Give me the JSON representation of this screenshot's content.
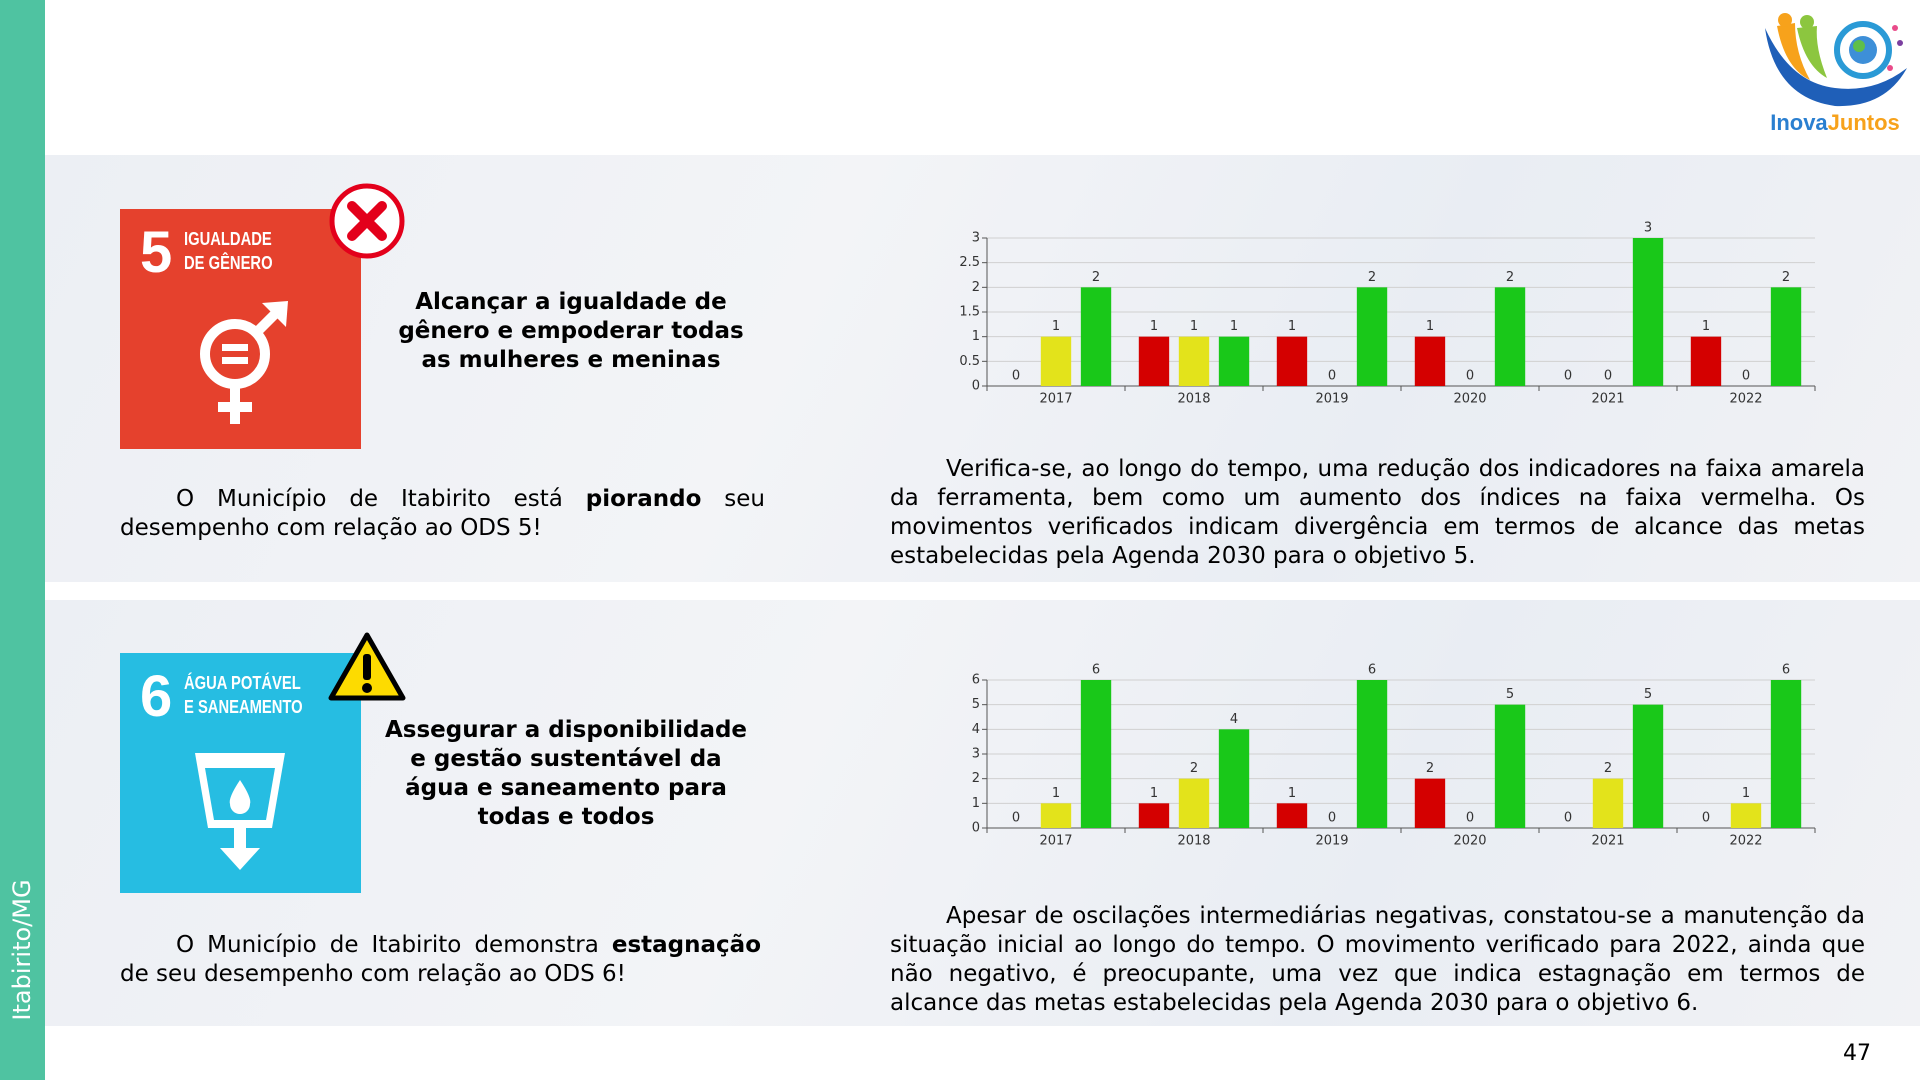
{
  "sidebar": "Itabirito/MG",
  "logo": [
    "Inova",
    "Juntos"
  ],
  "page_number": "47",
  "sections": [
    {
      "icon": {
        "number": "5",
        "label": [
          "IGUALDADE",
          "DE GÊNERO"
        ]
      },
      "title": "Alcançar a igualdade de gênero e empoderar todas as mulheres e meninas",
      "description": [
        "O Município de Itabirito está ",
        "piorando",
        " seu desempenho com relação ao ODS 5!"
      ],
      "analysis": "Verifica-se, ao longo do tempo, uma redução dos indicadores na faixa amarela da ferramenta, bem como um aumento dos índices na faixa vermelha. Os movimentos verificados indicam divergência em termos de alcance das metas estabelecidas pela Agenda 2030 para o objetivo 5."
    },
    {
      "icon": {
        "number": "6",
        "label": [
          "ÁGUA POTÁVEL",
          "E SANEAMENTO"
        ]
      },
      "title": "Assegurar a disponibilidade e gestão sustentável da água e saneamento para todas e todos",
      "description": [
        "O Município de Itabirito demonstra ",
        "estagnação",
        " de seu desempenho com relação ao ODS 6!"
      ],
      "analysis": "Apesar de oscilações intermediárias negativas, constatou-se a manutenção da situação inicial ao longo do tempo. O movimento verificado para 2022, ainda que não negativo, é preocupante, uma vez que indica estagnação em termos de alcance das metas estabelecidas pela Agenda 2030 para o objetivo 6."
    }
  ],
  "chart_data": [
    {
      "type": "bar",
      "categories": [
        "2017",
        "2018",
        "2019",
        "2020",
        "2021",
        "2022"
      ],
      "series": [
        {
          "color": "#d40000",
          "values": [
            0,
            1,
            1,
            1,
            0,
            1
          ]
        },
        {
          "color": "#e3e31b",
          "values": [
            1,
            1,
            0,
            0,
            0,
            0
          ]
        },
        {
          "color": "#19c819",
          "values": [
            2,
            1,
            2,
            2,
            3,
            2
          ]
        }
      ],
      "ylim": [
        0,
        3
      ],
      "yticks": [
        0,
        0.5,
        1,
        1.5,
        2,
        2.5,
        3
      ],
      "grid": true
    },
    {
      "type": "bar",
      "categories": [
        "2017",
        "2018",
        "2019",
        "2020",
        "2021",
        "2022"
      ],
      "series": [
        {
          "color": "#d40000",
          "values": [
            0,
            1,
            1,
            2,
            0,
            0
          ]
        },
        {
          "color": "#e3e31b",
          "values": [
            1,
            2,
            0,
            0,
            2,
            1
          ]
        },
        {
          "color": "#19c819",
          "values": [
            6,
            4,
            6,
            5,
            5,
            6
          ]
        }
      ],
      "ylim": [
        0,
        6
      ],
      "yticks": [
        0,
        1,
        2,
        3,
        4,
        5,
        6
      ],
      "grid": true
    }
  ]
}
